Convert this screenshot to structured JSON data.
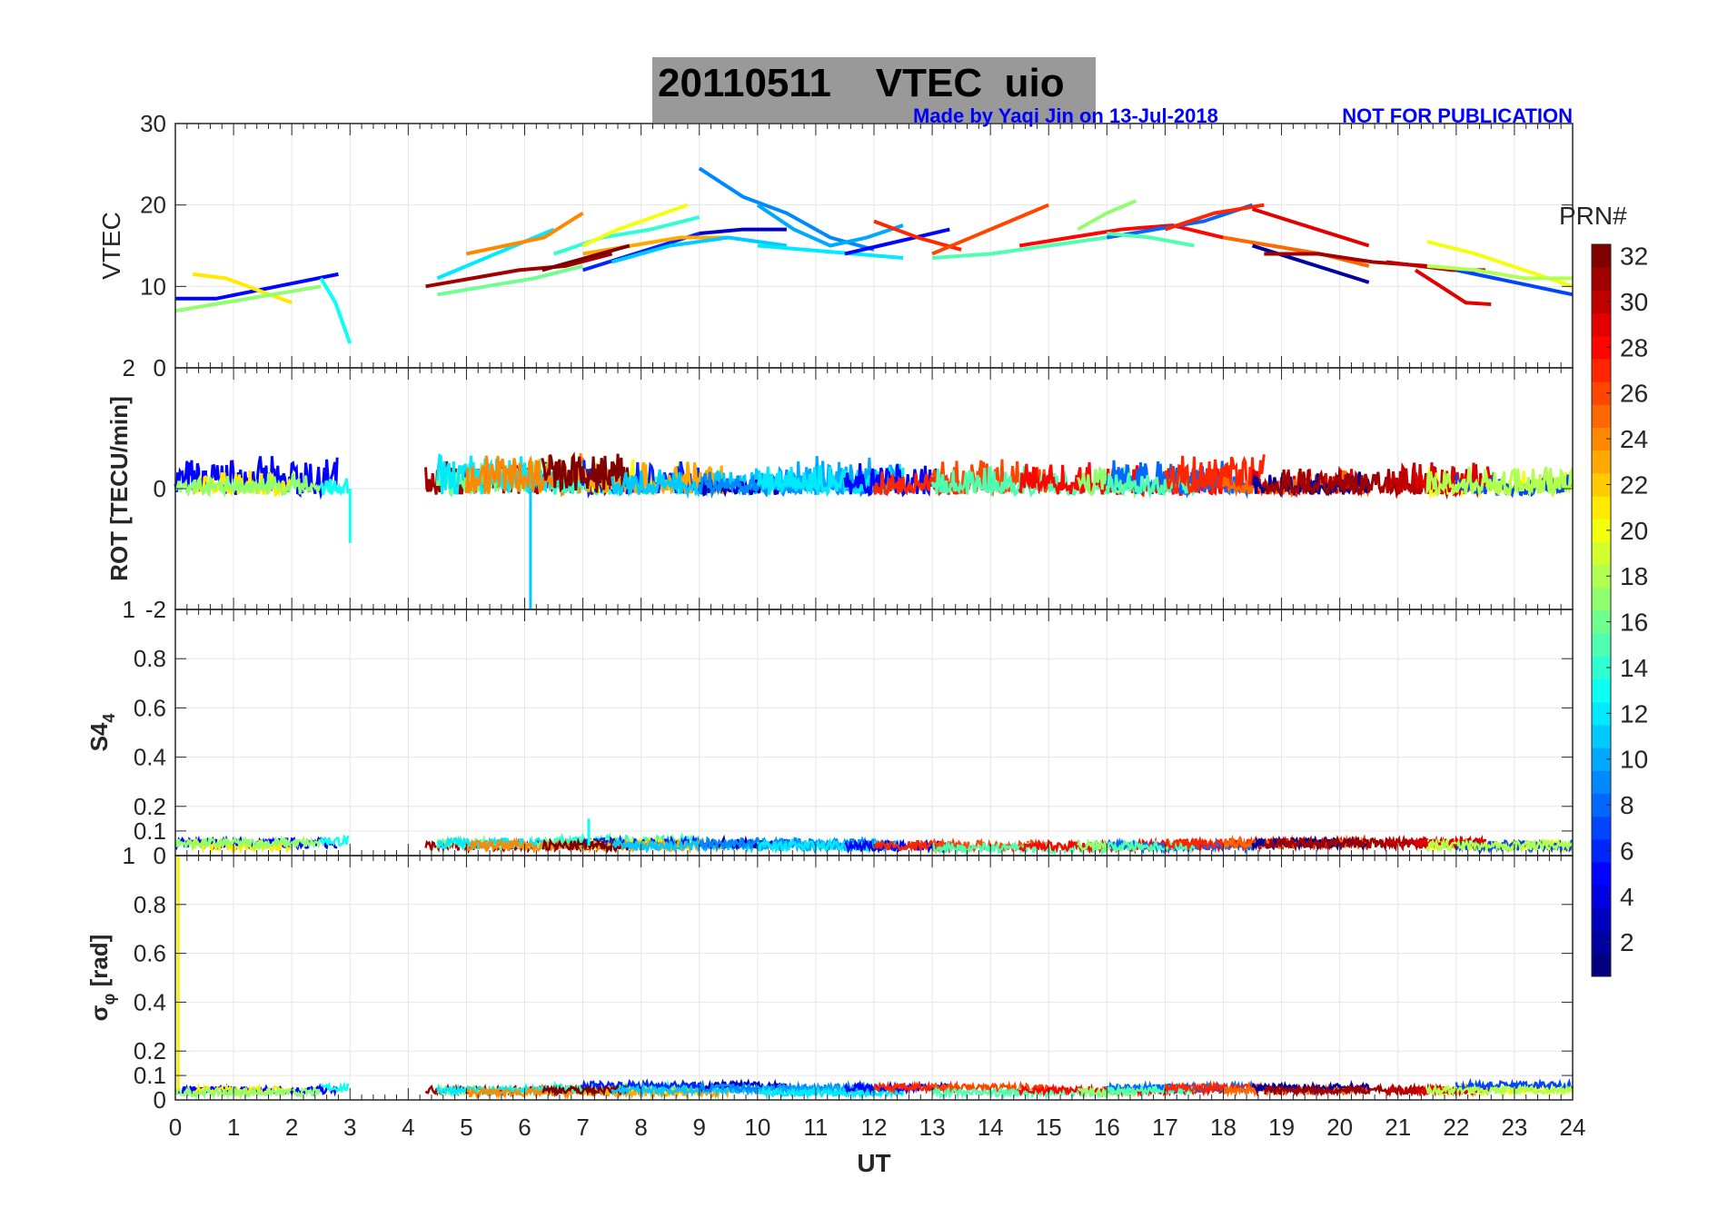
{
  "chart_data": {
    "type": "line",
    "title": "20110511    VTEC  uio",
    "credit": "Made by Yaqi Jin on 13-Jul-2018",
    "notice": "NOT FOR PUBLICATION",
    "xlabel": "UT",
    "xlim": [
      0,
      24
    ],
    "xticks": [
      "0",
      "1",
      "2",
      "3",
      "4",
      "5",
      "6",
      "7",
      "8",
      "9",
      "10",
      "11",
      "12",
      "13",
      "14",
      "15",
      "16",
      "17",
      "18",
      "19",
      "20",
      "21",
      "22",
      "23",
      "24"
    ],
    "colorbar": {
      "title": "PRN#",
      "range": [
        1,
        32
      ],
      "colormap": "jet",
      "ticks": [
        "2",
        "4",
        "6",
        "8",
        "10",
        "12",
        "14",
        "16",
        "18",
        "20",
        "22",
        "24",
        "26",
        "28",
        "30",
        "32"
      ]
    },
    "panels": [
      {
        "name": "vtec",
        "ylabel": "VTEC",
        "ylim": [
          0,
          30
        ],
        "yticks": [
          {
            "v": 0,
            "t": "0"
          },
          {
            "v": 10,
            "t": "10"
          },
          {
            "v": 20,
            "t": "20"
          },
          {
            "v": 30,
            "t": "30"
          }
        ]
      },
      {
        "name": "rot",
        "ylabel": "ROT [TECU/min]",
        "ylim": [
          -2,
          2
        ],
        "yticks": [
          {
            "v": -2,
            "t": "-2"
          },
          {
            "v": 0,
            "t": "0"
          },
          {
            "v": 2,
            "t": "2"
          }
        ]
      },
      {
        "name": "s4",
        "ylabel": "S4",
        "ylabel_sub": "4",
        "ylim": [
          0,
          1
        ],
        "yticks": [
          {
            "v": 0,
            "t": "0"
          },
          {
            "v": 0.1,
            "t": "0.1"
          },
          {
            "v": 0.2,
            "t": "0.2"
          },
          {
            "v": 0.4,
            "t": "0.4"
          },
          {
            "v": 0.6,
            "t": "0.6"
          },
          {
            "v": 0.8,
            "t": "0.8"
          },
          {
            "v": 1,
            "t": "1"
          }
        ]
      },
      {
        "name": "sigma",
        "ylabel": "σ",
        "ylabel_sub": "φ",
        "ylabel_unit": "[rad]",
        "ylim": [
          0,
          1
        ],
        "yticks": [
          {
            "v": 0,
            "t": "0"
          },
          {
            "v": 0.1,
            "t": "0.1"
          },
          {
            "v": 0.2,
            "t": "0.2"
          },
          {
            "v": 0.4,
            "t": "0.4"
          },
          {
            "v": 0.6,
            "t": "0.6"
          },
          {
            "v": 0.8,
            "t": "0.8"
          },
          {
            "v": 1,
            "t": "1"
          }
        ]
      }
    ],
    "arcs": [
      {
        "prn": 5,
        "t": [
          0,
          2.8
        ],
        "vtec": [
          8.5,
          8.5,
          9.5,
          10.5,
          11.5
        ],
        "rot": 0.1,
        "s4": 0.05,
        "sig": 0.04
      },
      {
        "prn": 21,
        "t": [
          0.3,
          2
        ],
        "vtec": [
          11.5,
          11,
          9.5,
          8
        ],
        "rot": -0.1,
        "s4": 0.04,
        "sig": 0.04
      },
      {
        "prn": 17,
        "t": [
          0,
          2.5
        ],
        "vtec": [
          7,
          8,
          9,
          10
        ],
        "rot": -0.15,
        "s4": 0.05,
        "sig": 0.03
      },
      {
        "prn": 13,
        "t": [
          2.5,
          3
        ],
        "vtec": [
          11,
          8,
          3
        ],
        "rot": -0.05,
        "s4": 0.06,
        "sig": 0.05
      },
      {
        "prn": 31,
        "t": [
          4.3,
          7.5
        ],
        "vtec": [
          10,
          11,
          12,
          12.5,
          14
        ],
        "rot": 0.05,
        "s4": 0.04,
        "sig": 0.04
      },
      {
        "prn": 16,
        "t": [
          4.5,
          7
        ],
        "vtec": [
          9,
          10,
          11,
          12.5
        ],
        "rot": 0.1,
        "s4": 0.05,
        "sig": 0.04
      },
      {
        "prn": 12,
        "t": [
          4.5,
          6.5
        ],
        "vtec": [
          11,
          13,
          15,
          17
        ],
        "rot": 0.15,
        "s4": 0.05,
        "sig": 0.04
      },
      {
        "prn": 24,
        "t": [
          5,
          7
        ],
        "vtec": [
          14,
          15,
          16,
          19
        ],
        "rot": 0.2,
        "s4": 0.04,
        "sig": 0.03
      },
      {
        "prn": 14,
        "t": [
          6.5,
          9
        ],
        "vtec": [
          14,
          16,
          17,
          18.5
        ],
        "rot": -0.1,
        "s4": 0.06,
        "sig": 0.05
      },
      {
        "prn": 20,
        "t": [
          7,
          8.8
        ],
        "vtec": [
          15,
          17,
          18.5,
          20
        ],
        "rot": 0.1,
        "s4": 0.05,
        "sig": 0.04
      },
      {
        "prn": 6,
        "t": [
          7,
          9
        ],
        "vtec": [
          12,
          13.5,
          15,
          16.5
        ],
        "rot": 0.05,
        "s4": 0.05,
        "sig": 0.06
      },
      {
        "prn": 23,
        "t": [
          7,
          9.5
        ],
        "vtec": [
          14,
          15,
          16,
          16
        ],
        "rot": 0.05,
        "s4": 0.04,
        "sig": 0.03
      },
      {
        "prn": 32,
        "t": [
          6.3,
          7.8
        ],
        "vtec": [
          12,
          13,
          14,
          15
        ],
        "rot": 0.2,
        "s4": 0.04,
        "sig": 0.04
      },
      {
        "prn": 11,
        "t": [
          7.5,
          10.5
        ],
        "vtec": [
          13,
          15,
          16,
          15
        ],
        "rot": -0.05,
        "s4": 0.04,
        "sig": 0.04
      },
      {
        "prn": 3,
        "t": [
          9,
          10.5
        ],
        "vtec": [
          16.5,
          17,
          17
        ],
        "rot": -0.2,
        "s4": 0.05,
        "sig": 0.06
      },
      {
        "prn": 9,
        "t": [
          9,
          12
        ],
        "vtec": [
          24.5,
          21,
          19,
          16,
          14.5
        ],
        "rot": -0.1,
        "s4": 0.05,
        "sig": 0.05
      },
      {
        "prn": 10,
        "t": [
          10,
          12.5
        ],
        "vtec": [
          20,
          17,
          15,
          16,
          17.5
        ],
        "rot": 0.1,
        "s4": 0.04,
        "sig": 0.04
      },
      {
        "prn": 12,
        "t": [
          10,
          12.5
        ],
        "vtec": [
          15,
          14.5,
          14,
          13.5
        ],
        "rot": 0,
        "s4": 0.04,
        "sig": 0.03
      },
      {
        "prn": 5,
        "t": [
          11.5,
          13.3
        ],
        "vtec": [
          14,
          15,
          16,
          17
        ],
        "rot": 0.05,
        "s4": 0.04,
        "sig": 0.05
      },
      {
        "prn": 27,
        "t": [
          12,
          13.5
        ],
        "vtec": [
          18,
          16,
          14.5
        ],
        "rot": -0.1,
        "s4": 0.04,
        "sig": 0.05
      },
      {
        "prn": 26,
        "t": [
          13,
          15
        ],
        "vtec": [
          14,
          16,
          18,
          20
        ],
        "rot": 0.05,
        "s4": 0.04,
        "sig": 0.05
      },
      {
        "prn": 15,
        "t": [
          13,
          16
        ],
        "vtec": [
          13.5,
          14,
          15,
          16
        ],
        "rot": -0.05,
        "s4": 0.03,
        "sig": 0.03
      },
      {
        "prn": 28,
        "t": [
          14.5,
          18
        ],
        "vtec": [
          15,
          16,
          17,
          17.5,
          16
        ],
        "rot": 0,
        "s4": 0.04,
        "sig": 0.04
      },
      {
        "prn": 17,
        "t": [
          15.5,
          16.5
        ],
        "vtec": [
          17,
          19,
          20.5
        ],
        "rot": 0.05,
        "s4": 0.04,
        "sig": 0.03
      },
      {
        "prn": 8,
        "t": [
          16,
          18.5
        ],
        "vtec": [
          16,
          17,
          18,
          20
        ],
        "rot": 0.1,
        "s4": 0.04,
        "sig": 0.05
      },
      {
        "prn": 15,
        "t": [
          16,
          17.5
        ],
        "vtec": [
          16.5,
          16,
          15
        ],
        "rot": -0.1,
        "s4": 0.04,
        "sig": 0.04
      },
      {
        "prn": 27,
        "t": [
          17,
          18.7
        ],
        "vtec": [
          17,
          19,
          20
        ],
        "rot": 0.15,
        "s4": 0.05,
        "sig": 0.05
      },
      {
        "prn": 29,
        "t": [
          18.5,
          20.5
        ],
        "vtec": [
          19.5,
          18,
          16.5,
          15
        ],
        "rot": -0.05,
        "s4": 0.05,
        "sig": 0.04
      },
      {
        "prn": 25,
        "t": [
          18,
          20.5
        ],
        "vtec": [
          16,
          15,
          14,
          12.5
        ],
        "rot": -0.1,
        "s4": 0.05,
        "sig": 0.04
      },
      {
        "prn": 2,
        "t": [
          18.5,
          20.5
        ],
        "vtec": [
          15,
          13.5,
          12,
          10.5
        ],
        "rot": -0.15,
        "s4": 0.05,
        "sig": 0.05
      },
      {
        "prn": 31,
        "t": [
          18.7,
          21.5
        ],
        "vtec": [
          14,
          14,
          13,
          12.5
        ],
        "rot": -0.05,
        "s4": 0.05,
        "sig": 0.04
      },
      {
        "prn": 30,
        "t": [
          20.8,
          22.5
        ],
        "vtec": [
          13,
          12.5,
          12,
          12
        ],
        "rot": 0.05,
        "s4": 0.05,
        "sig": 0.04
      },
      {
        "prn": 20,
        "t": [
          21.5,
          24
        ],
        "vtec": [
          15.5,
          14,
          12,
          10
        ],
        "rot": -0.1,
        "s4": 0.04,
        "sig": 0.04
      },
      {
        "prn": 29,
        "t": [
          21.3,
          22.6
        ],
        "vtec": [
          12,
          10,
          8,
          7.8
        ],
        "rot": 0,
        "s4": 0.05,
        "sig": 0.04
      },
      {
        "prn": 7,
        "t": [
          22,
          24
        ],
        "vtec": [
          12,
          11,
          10,
          9
        ],
        "rot": -0.15,
        "s4": 0.04,
        "sig": 0.06
      },
      {
        "prn": 18,
        "t": [
          21.5,
          24
        ],
        "vtec": [
          12.5,
          12,
          11,
          11
        ],
        "rot": -0.05,
        "s4": 0.04,
        "sig": 0.04
      }
    ],
    "spikes": [
      {
        "prn": 13,
        "t": 3,
        "rot": -0.9
      },
      {
        "prn": 11,
        "t": 6.1,
        "rot": -2
      },
      {
        "prn": 13,
        "t": 7.1,
        "s4": 0.15
      },
      {
        "prn": 21,
        "t": 0.05,
        "sig": 1
      }
    ]
  }
}
